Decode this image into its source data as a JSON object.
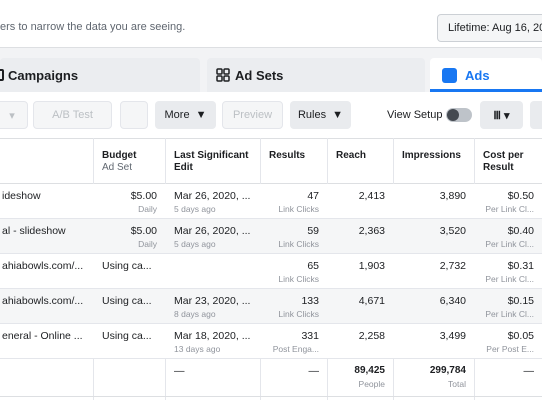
{
  "filter_bar": {
    "hint": "ers to narrow the data you are seeing.",
    "date_range": "Lifetime: Aug 16, 20"
  },
  "tabs": [
    "Campaigns",
    "Ad Sets",
    "Ads"
  ],
  "toolbar": {
    "ab_test": "A/B Test",
    "more": "More",
    "preview": "Preview",
    "rules": "Rules",
    "view_setup": "View Setup"
  },
  "table": {
    "columns": [
      {
        "title": "Budget",
        "subtitle": "Ad Set"
      },
      {
        "title": "Last Significant Edit"
      },
      {
        "title": "Results"
      },
      {
        "title": "Reach"
      },
      {
        "title": "Impressions"
      },
      {
        "title": "Cost per Result"
      }
    ],
    "rows": [
      {
        "name": "ideshow",
        "budget": "$5.00",
        "budget_note": "Daily",
        "edit": "Mar 26, 2020, ...",
        "edit_note": "5 days ago",
        "results": "47",
        "results_note": "Link Clicks",
        "reach": "2,413",
        "impressions": "3,890",
        "cost": "$0.50",
        "cost_note": "Per Link Cl..."
      },
      {
        "name": "al - slideshow",
        "budget": "$5.00",
        "budget_note": "Daily",
        "edit": "Mar 26, 2020, ...",
        "edit_note": "5 days ago",
        "results": "59",
        "results_note": "Link Clicks",
        "reach": "2,363",
        "impressions": "3,520",
        "cost": "$0.40",
        "cost_note": "Per Link Cl..."
      },
      {
        "name": "ahiabowls.com/...",
        "budget": "Using ca...",
        "results": "65",
        "results_note": "Link Clicks",
        "reach": "1,903",
        "impressions": "2,732",
        "cost": "$0.31",
        "cost_note": "Per Link Cl..."
      },
      {
        "name": "ahiabowls.com/...",
        "budget": "Using ca...",
        "edit": "Mar 23, 2020, ...",
        "edit_note": "8 days ago",
        "results": "133",
        "results_note": "Link Clicks",
        "reach": "4,671",
        "impressions": "6,340",
        "cost": "$0.15",
        "cost_note": "Per Link Cl..."
      },
      {
        "name": "eneral - Online ...",
        "budget": "Using ca...",
        "edit": "Mar 18, 2020, ...",
        "edit_note": "13 days ago",
        "results": "331",
        "results_note": "Post Enga...",
        "reach": "2,258",
        "impressions": "3,499",
        "cost": "$0.05",
        "cost_note": "Per Post E..."
      }
    ],
    "totals": {
      "edit": "—",
      "results": "—",
      "reach": "89,425",
      "reach_note": "People",
      "impressions": "299,784",
      "impressions_note": "Total",
      "cost": "—"
    }
  }
}
